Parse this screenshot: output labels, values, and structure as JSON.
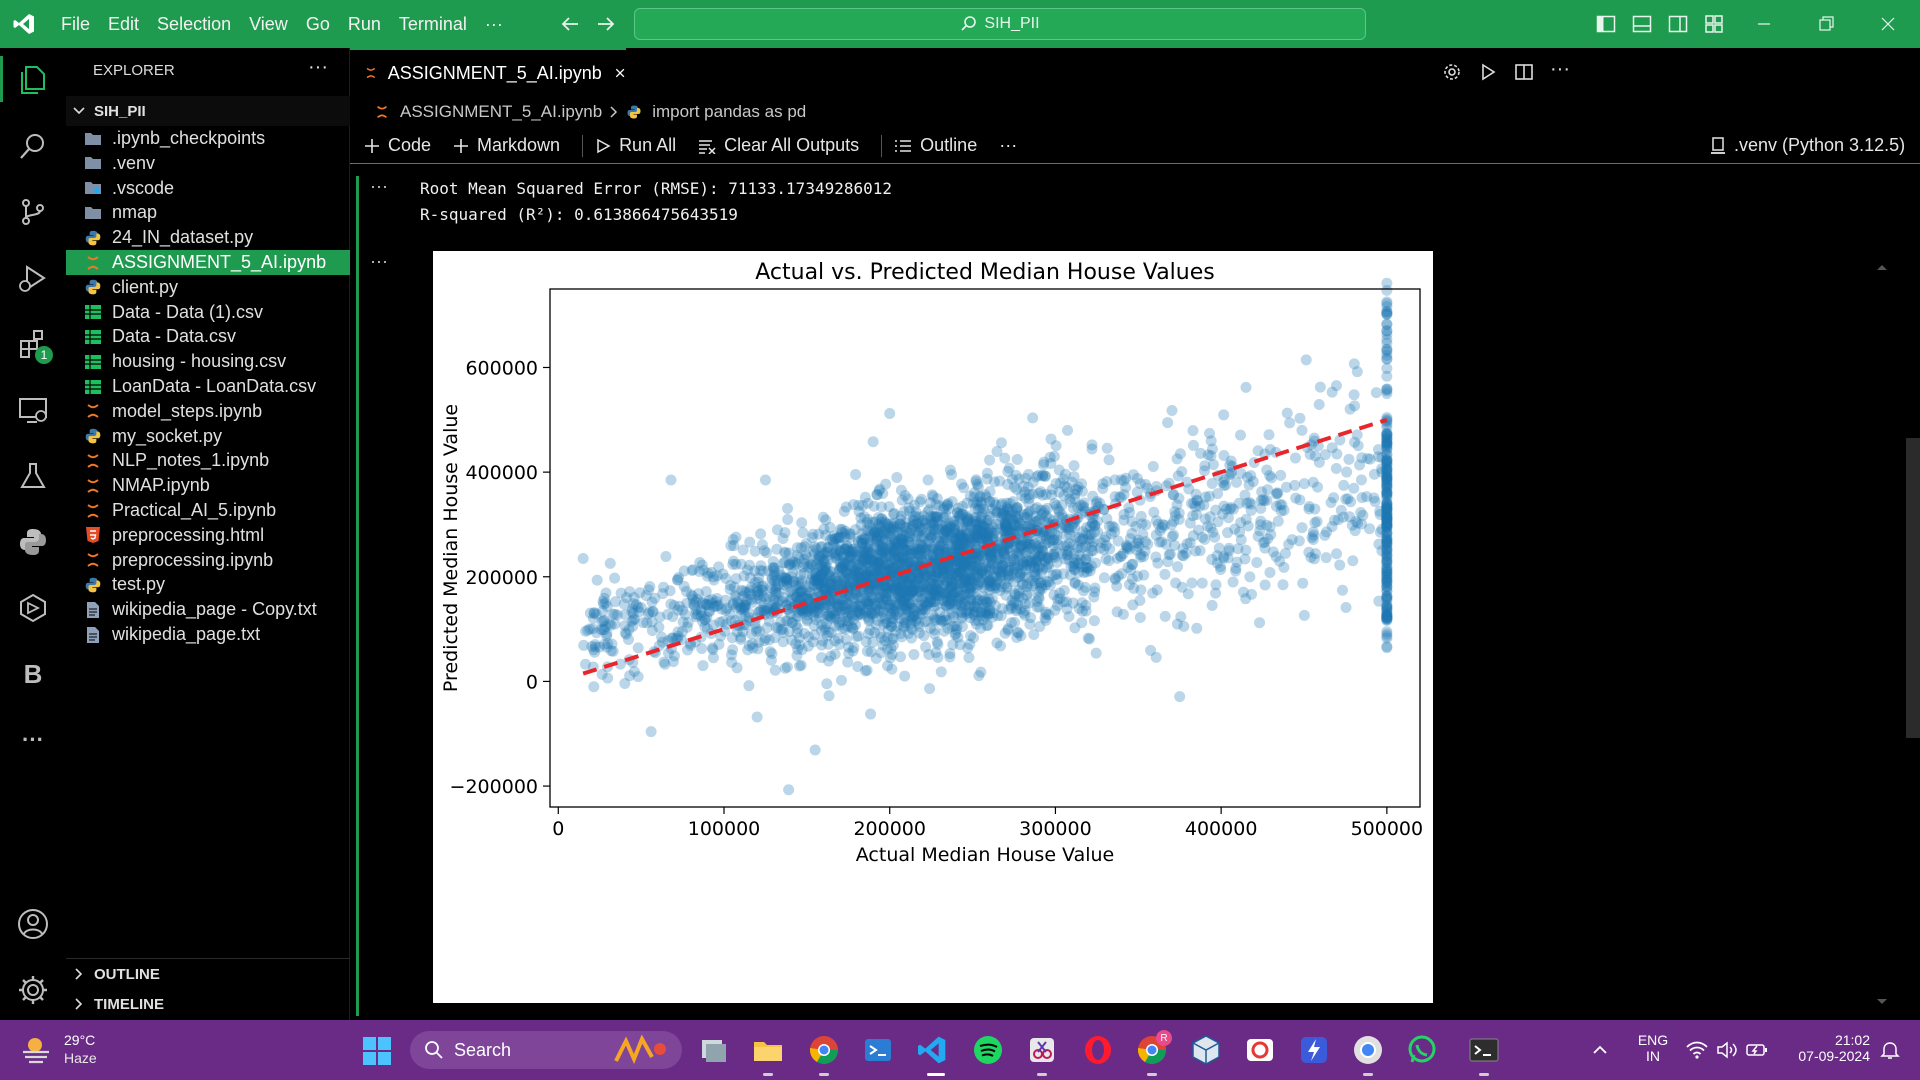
{
  "titlebar": {
    "menu": [
      "File",
      "Edit",
      "Selection",
      "View",
      "Go",
      "Run",
      "Terminal",
      "···"
    ],
    "search": "SIH_PII"
  },
  "activity": {
    "extensions_badge": "1",
    "letter_b": "B",
    "more": "···"
  },
  "sidebar": {
    "header": "EXPLORER",
    "more": "···",
    "root": "SIH_PII",
    "items": [
      {
        "label": ".ipynb_checkpoints",
        "icon": "folder-icon"
      },
      {
        "label": ".venv",
        "icon": "folder-icon"
      },
      {
        "label": ".vscode",
        "icon": "vscode-folder-icon"
      },
      {
        "label": "nmap",
        "icon": "folder-icon"
      },
      {
        "label": "24_IN_dataset.py",
        "icon": "python-icon"
      },
      {
        "label": "ASSIGNMENT_5_AI.ipynb",
        "icon": "notebook-icon"
      },
      {
        "label": "client.py",
        "icon": "python-icon"
      },
      {
        "label": "Data - Data (1).csv",
        "icon": "csv-icon"
      },
      {
        "label": "Data - Data.csv",
        "icon": "csv-icon"
      },
      {
        "label": "housing - housing.csv",
        "icon": "csv-icon"
      },
      {
        "label": "LoanData - LoanData.csv",
        "icon": "csv-icon"
      },
      {
        "label": "model_steps.ipynb",
        "icon": "notebook-icon"
      },
      {
        "label": "my_socket.py",
        "icon": "python-icon"
      },
      {
        "label": "NLP_notes_1.ipynb",
        "icon": "notebook-icon"
      },
      {
        "label": "NMAP.ipynb",
        "icon": "notebook-icon"
      },
      {
        "label": "Practical_AI_5.ipynb",
        "icon": "notebook-icon"
      },
      {
        "label": "preprocessing.html",
        "icon": "html-icon"
      },
      {
        "label": "preprocessing.ipynb",
        "icon": "notebook-icon"
      },
      {
        "label": "test.py",
        "icon": "python-icon"
      },
      {
        "label": "wikipedia_page - Copy.txt",
        "icon": "text-file-icon"
      },
      {
        "label": "wikipedia_page.txt",
        "icon": "text-file-icon"
      }
    ],
    "selected_index": 5,
    "outline": "OUTLINE",
    "timeline": "TIMELINE"
  },
  "editor": {
    "tab_label": "ASSIGNMENT_5_AI.ipynb",
    "breadcrumb_file": "ASSIGNMENT_5_AI.ipynb",
    "breadcrumb_cell": "import pandas as pd",
    "toolbar": {
      "code": "Code",
      "markdown": "Markdown",
      "run_all": "Run All",
      "clear_outputs": "Clear All Outputs",
      "outline": "Outline",
      "more": "···",
      "kernel": ".venv (Python 3.12.5)"
    },
    "cell_more": "···",
    "output_line1": "Root Mean Squared Error (RMSE): 71133.17349286012",
    "output_line2": "R-squared (R²): 0.613866475643519"
  },
  "chart_data": {
    "type": "scatter",
    "title": "Actual vs. Predicted Median House Values",
    "xlabel": "Actual Median House Value",
    "ylabel": "Predicted Median House Value",
    "xlim": [
      -5000,
      520000
    ],
    "ylim": [
      -240000,
      750000
    ],
    "xticks": [
      0,
      100000,
      200000,
      300000,
      400000,
      500000
    ],
    "yticks": [
      -200000,
      0,
      200000,
      400000,
      600000
    ],
    "point_color": "#1f77b4",
    "line_color": "#e8262b",
    "reference_line": {
      "x": [
        15000,
        500000
      ],
      "y": [
        15000,
        500000
      ],
      "style": "dashed"
    },
    "point_cloud": {
      "count": 3300,
      "approx_slope": 0.61,
      "approx_intercept": 80000,
      "noise_std": 70000,
      "x_range": [
        15000,
        500000
      ],
      "capped_cluster_x": 500000,
      "capped_cluster_y_range": [
        60000,
        710000
      ]
    },
    "notable_points": [
      {
        "x": 200000,
        "y": 512000
      },
      {
        "x": 415000,
        "y": 562000
      },
      {
        "x": 467000,
        "y": 553000
      },
      {
        "x": 190000,
        "y": 458000
      },
      {
        "x": 68000,
        "y": 385000
      },
      {
        "x": 125000,
        "y": 385000
      },
      {
        "x": 139000,
        "y": -207000
      },
      {
        "x": 155000,
        "y": -131000
      },
      {
        "x": 56000,
        "y": -96000
      },
      {
        "x": 375000,
        "y": -29000
      },
      {
        "x": 120000,
        "y": -68000
      },
      {
        "x": 15000,
        "y": 235000
      }
    ],
    "grid": false,
    "legend": "none"
  },
  "taskbar": {
    "weather_temp": "29°C",
    "weather_desc": "Haze",
    "search": "Search",
    "lang_1": "ENG",
    "lang_2": "IN",
    "time": "21:02",
    "date": "07-09-2024",
    "chrome_badge": "R"
  }
}
